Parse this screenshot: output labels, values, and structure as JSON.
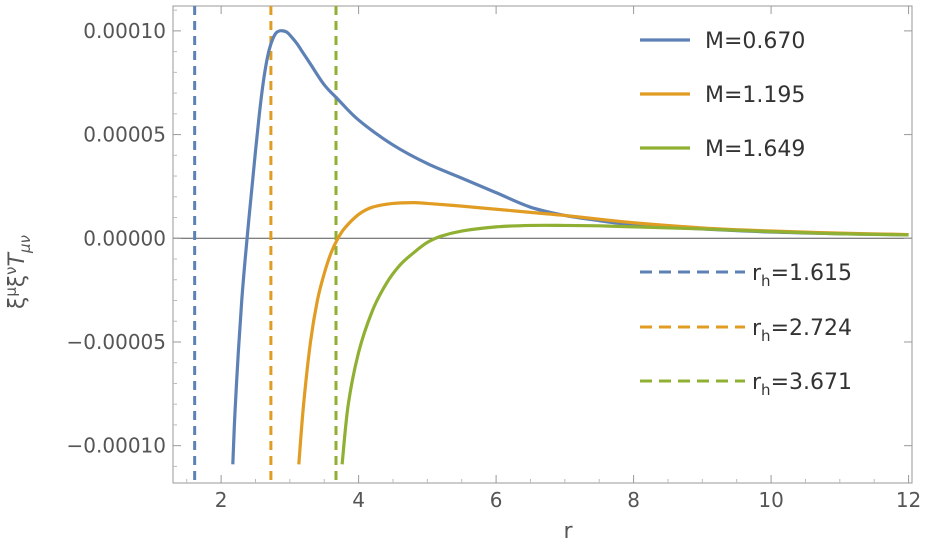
{
  "chart_data": {
    "type": "line",
    "xlabel": "r",
    "ylabel_parts": [
      "ξ",
      "μ",
      "ξ",
      "ν",
      "T",
      "μν"
    ],
    "xlim": [
      1.3,
      12.05
    ],
    "ylim": [
      -0.000118,
      0.000112
    ],
    "x_ticks": [
      {
        "value": 2,
        "label": "2"
      },
      {
        "value": 4,
        "label": "4"
      },
      {
        "value": 6,
        "label": "6"
      },
      {
        "value": 8,
        "label": "8"
      },
      {
        "value": 10,
        "label": "10"
      },
      {
        "value": 12,
        "label": "12"
      }
    ],
    "y_ticks": [
      {
        "value": 0.0001,
        "label": "0.00010"
      },
      {
        "value": 5e-05,
        "label": "0.00005"
      },
      {
        "value": 0,
        "label": "0.00000"
      },
      {
        "value": -5e-05,
        "label": "−0.00005"
      },
      {
        "value": -0.0001,
        "label": "−0.00010"
      }
    ],
    "zero_line": true,
    "frame": true,
    "series": [
      {
        "name": "M=0.670",
        "color": "#5e81b5",
        "points": [
          [
            2.17,
            -0.000109
          ],
          [
            2.2,
            -8.5e-05
          ],
          [
            2.25,
            -5.5e-05
          ],
          [
            2.3,
            -3e-05
          ],
          [
            2.35,
            -1e-05
          ],
          [
            2.4,
            8e-06
          ],
          [
            2.45,
            2.5e-05
          ],
          [
            2.5,
            4.2e-05
          ],
          [
            2.55,
            5.8e-05
          ],
          [
            2.6,
            7.2e-05
          ],
          [
            2.65,
            8.3e-05
          ],
          [
            2.7,
            9.1e-05
          ],
          [
            2.75,
            9.6e-05
          ],
          [
            2.8,
            9.9e-05
          ],
          [
            2.85,
            0.0001
          ],
          [
            2.9,
            0.0001
          ],
          [
            2.95,
            9.95e-05
          ],
          [
            3.0,
            9.8e-05
          ],
          [
            3.1,
            9.4e-05
          ],
          [
            3.2,
            8.9e-05
          ],
          [
            3.3,
            8.4e-05
          ],
          [
            3.5,
            7.4e-05
          ],
          [
            3.7,
            6.7e-05
          ],
          [
            4.0,
            5.7e-05
          ],
          [
            4.5,
            4.5e-05
          ],
          [
            5.0,
            3.6e-05
          ],
          [
            5.5,
            2.9e-05
          ],
          [
            6.0,
            2.2e-05
          ],
          [
            6.5,
            1.5e-05
          ],
          [
            7.0,
            1.1e-05
          ],
          [
            7.5,
            8.5e-06
          ],
          [
            8.0,
            6.5e-06
          ],
          [
            9.0,
            4.5e-06
          ],
          [
            10.0,
            3e-06
          ],
          [
            11.0,
            2.2e-06
          ],
          [
            12.0,
            1.7e-06
          ]
        ]
      },
      {
        "name": "M=1.195",
        "color": "#e19c24",
        "points": [
          [
            3.13,
            -0.000109
          ],
          [
            3.2,
            -8e-05
          ],
          [
            3.3,
            -5e-05
          ],
          [
            3.4,
            -3e-05
          ],
          [
            3.5,
            -1.7e-05
          ],
          [
            3.6,
            -7e-06
          ],
          [
            3.7,
            0.0
          ],
          [
            3.8,
            5e-06
          ],
          [
            4.0,
            1.15e-05
          ],
          [
            4.2,
            1.5e-05
          ],
          [
            4.5,
            1.68e-05
          ],
          [
            4.8,
            1.72e-05
          ],
          [
            5.0,
            1.68e-05
          ],
          [
            5.5,
            1.55e-05
          ],
          [
            6.0,
            1.4e-05
          ],
          [
            6.5,
            1.25e-05
          ],
          [
            7.0,
            1.1e-05
          ],
          [
            7.5,
            9.2e-06
          ],
          [
            8.0,
            7.5e-06
          ],
          [
            9.0,
            5e-06
          ],
          [
            10.0,
            3.5e-06
          ],
          [
            11.0,
            2.5e-06
          ],
          [
            12.0,
            1.8e-06
          ]
        ]
      },
      {
        "name": "M=1.649",
        "color": "#8fb032",
        "points": [
          [
            3.76,
            -0.000109
          ],
          [
            3.85,
            -8e-05
          ],
          [
            4.0,
            -5.5e-05
          ],
          [
            4.2,
            -3.5e-05
          ],
          [
            4.4,
            -2.2e-05
          ],
          [
            4.6,
            -1.3e-05
          ],
          [
            4.8,
            -7e-06
          ],
          [
            5.0,
            -2e-06
          ],
          [
            5.2,
            1e-06
          ],
          [
            5.5,
            3.5e-06
          ],
          [
            6.0,
            5.5e-06
          ],
          [
            6.5,
            6.2e-06
          ],
          [
            7.0,
            6.2e-06
          ],
          [
            7.5,
            6e-06
          ],
          [
            8.0,
            5.5e-06
          ],
          [
            9.0,
            4.5e-06
          ],
          [
            10.0,
            3.2e-06
          ],
          [
            11.0,
            2.2e-06
          ],
          [
            12.0,
            1.6e-06
          ]
        ]
      }
    ],
    "horizons": [
      {
        "label_main": "r",
        "label_sub": "h",
        "label_value": "=1.615",
        "x": 1.615,
        "color": "#5e81b5"
      },
      {
        "label_main": "r",
        "label_sub": "h",
        "label_value": "=2.724",
        "x": 2.724,
        "color": "#e19c24"
      },
      {
        "label_main": "r",
        "label_sub": "h",
        "label_value": "=3.671",
        "x": 3.671,
        "color": "#8fb032"
      }
    ],
    "legend_placement": "right"
  }
}
